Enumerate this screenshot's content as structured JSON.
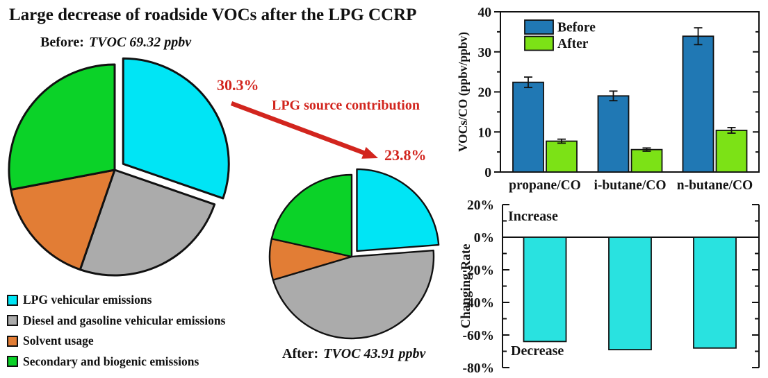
{
  "title": "Large decrease of roadside VOCs after the LPG CCRP",
  "accent_red": "#d2251e",
  "arrow": {
    "label": "LPG source contribution",
    "color": "#d2251e"
  },
  "legend": {
    "items": [
      {
        "label": "LPG vehicular emissions",
        "color": "#00e5f5"
      },
      {
        "label": "Diesel and gasoline vehicular emissions",
        "color": "#ababab"
      },
      {
        "label": "Solvent usage",
        "color": "#e27d35"
      },
      {
        "label": "Secondary and biogenic emissions",
        "color": "#0bd228"
      }
    ]
  },
  "chart_data": [
    {
      "type": "pie",
      "name": "source-apportionment-before",
      "label_prefix": "Before:",
      "label_value": "TVOC 69.32 ppbv",
      "callout": "30.3%",
      "labels": [
        "LPG vehicular emissions",
        "Diesel and gasoline vehicular emissions",
        "Solvent usage",
        "Secondary and biogenic emissions"
      ],
      "values": [
        30.3,
        25.0,
        16.7,
        28.0
      ],
      "colors": [
        "#00e5f5",
        "#ababab",
        "#e27d35",
        "#0bd228"
      ],
      "exploded_slice": "LPG vehicular emissions"
    },
    {
      "type": "pie",
      "name": "source-apportionment-after",
      "label_prefix": "After:",
      "label_value": "TVOC 43.91 ppbv",
      "callout": "23.8%",
      "labels": [
        "LPG vehicular emissions",
        "Diesel and gasoline vehicular emissions",
        "Solvent usage",
        "Secondary and biogenic emissions"
      ],
      "values": [
        23.8,
        46.6,
        8.1,
        21.5
      ],
      "colors": [
        "#00e5f5",
        "#ababab",
        "#e27d35",
        "#0bd228"
      ],
      "exploded_slice": "LPG vehicular emissions"
    },
    {
      "type": "bar",
      "name": "vocs-co-ratios",
      "ylabel": "VOCs/CO (ppbv/ppbv)",
      "categories": [
        "propane/CO",
        "i-butane/CO",
        "n-butane/CO"
      ],
      "series": [
        {
          "name": "Before",
          "color": "#2078b4",
          "values": [
            22.4,
            19.0,
            33.9
          ],
          "errors": [
            1.3,
            1.2,
            2.1
          ]
        },
        {
          "name": "After",
          "color": "#7ce216",
          "values": [
            7.7,
            5.6,
            10.4
          ],
          "errors": [
            0.5,
            0.4,
            0.7
          ]
        }
      ],
      "ylim": [
        0,
        40
      ],
      "ytick_step": 10,
      "minor_tick_step": 5,
      "grid": false,
      "legend_position": "top-left"
    },
    {
      "type": "bar",
      "name": "changing-rate",
      "ylabel": "Changing Rate",
      "categories": [
        "propane/CO",
        "i-butane/CO",
        "n-butane/CO"
      ],
      "series": [
        {
          "name": "Changing Rate",
          "color": "#29e2e0",
          "values": [
            -64,
            -69,
            -68
          ]
        }
      ],
      "ylim": [
        -80,
        20
      ],
      "ytick_step": 20,
      "minor_tick_step": 10,
      "tick_suffix": "%",
      "grid": false,
      "annotations": [
        {
          "text": "Increase",
          "position": "above-zero"
        },
        {
          "text": "Decrease",
          "position": "bottom"
        }
      ]
    }
  ]
}
